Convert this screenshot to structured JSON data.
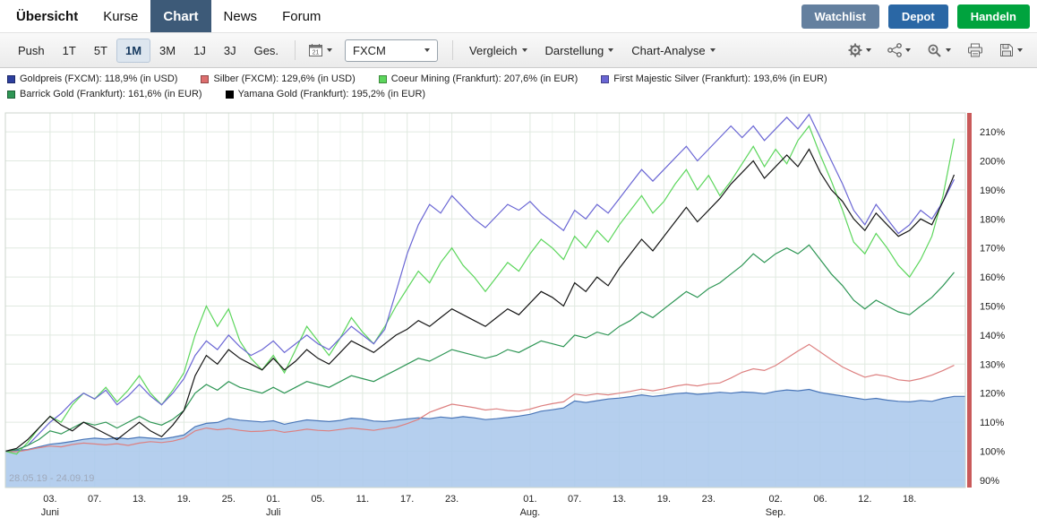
{
  "nav": {
    "items": [
      {
        "label": "Übersicht"
      },
      {
        "label": "Kurse"
      },
      {
        "label": "Chart",
        "active": true
      },
      {
        "label": "News"
      },
      {
        "label": "Forum"
      }
    ],
    "buttons": [
      {
        "label": "Watchlist",
        "color": "#64809f"
      },
      {
        "label": "Depot",
        "color": "#2a67a5"
      },
      {
        "label": "Handeln",
        "color": "#00a33e"
      }
    ]
  },
  "toolbar": {
    "push_label": "Push",
    "periods": [
      {
        "label": "1T"
      },
      {
        "label": "5T"
      },
      {
        "label": "1M",
        "active": true
      },
      {
        "label": "3M"
      },
      {
        "label": "1J"
      },
      {
        "label": "3J"
      },
      {
        "label": "Ges."
      }
    ],
    "calendar_day": "21",
    "source_select": {
      "value": "FXCM"
    },
    "menus": [
      {
        "label": "Vergleich"
      },
      {
        "label": "Darstellung"
      },
      {
        "label": "Chart-Analyse"
      }
    ],
    "icons": [
      {
        "name": "calendar-icon"
      },
      {
        "name": "settings-gear-icon"
      },
      {
        "name": "indicators-nodes-icon"
      },
      {
        "name": "zoom-in-icon"
      },
      {
        "name": "printer-icon"
      },
      {
        "name": "save-icon"
      }
    ]
  },
  "legend": {
    "items": [
      {
        "label": "Goldpreis (FXCM): 118,9% (in USD)",
        "color": "#2d3f9e"
      },
      {
        "label": "Silber (FXCM): 129,6% (in USD)",
        "color": "#dd6e6e"
      },
      {
        "label": "Coeur Mining (Frankfurt): 207,6% (in EUR)",
        "color": "#5cd65c"
      },
      {
        "label": "First Majestic Silver (Frankfurt): 193,6% (in EUR)",
        "color": "#6a66d4"
      },
      {
        "label": "Barrick Gold (Frankfurt): 161,6% (in EUR)",
        "color": "#2e9655"
      },
      {
        "label": "Yamana Gold (Frankfurt): 195,2% (in EUR)",
        "color": "#000000"
      }
    ]
  },
  "chart_data": {
    "type": "line",
    "title": "",
    "xlabel": "",
    "ylabel": "",
    "range_label": "28.05.19 - 24.09.19",
    "grid": true,
    "legend_position": "top",
    "ylim": [
      87.5,
      216.5
    ],
    "y_ticks": [
      90,
      100,
      110,
      120,
      130,
      140,
      150,
      160,
      170,
      180,
      190,
      200,
      210
    ],
    "y_tick_suffix": "%",
    "x_ticks": [
      {
        "index": 4,
        "label": "03."
      },
      {
        "index": 8,
        "label": "07."
      },
      {
        "index": 12,
        "label": "13."
      },
      {
        "index": 16,
        "label": "19."
      },
      {
        "index": 20,
        "label": "25."
      },
      {
        "index": 24,
        "label": "01."
      },
      {
        "index": 28,
        "label": "05."
      },
      {
        "index": 32,
        "label": "11."
      },
      {
        "index": 36,
        "label": "17."
      },
      {
        "index": 40,
        "label": "23."
      },
      {
        "index": 47,
        "label": "01."
      },
      {
        "index": 51,
        "label": "07."
      },
      {
        "index": 55,
        "label": "13."
      },
      {
        "index": 59,
        "label": "19."
      },
      {
        "index": 63,
        "label": "23."
      },
      {
        "index": 69,
        "label": "02."
      },
      {
        "index": 73,
        "label": "06."
      },
      {
        "index": 77,
        "label": "12."
      },
      {
        "index": 81,
        "label": "18."
      }
    ],
    "month_labels": [
      {
        "index": 4,
        "label": "Juni"
      },
      {
        "index": 24,
        "label": "Juli"
      },
      {
        "index": 47,
        "label": "Aug."
      },
      {
        "index": 69,
        "label": "Sep."
      }
    ],
    "series": [
      {
        "name": "Goldpreis (FXCM)",
        "unit": "USD",
        "final_pct": "118,9%",
        "type": "area",
        "color": "#4a76b8",
        "fill": "#abc8ec",
        "values": [
          100,
          100.3,
          100.6,
          101.5,
          102.4,
          102.8,
          103.4,
          104.1,
          104.5,
          104.2,
          104.6,
          104.3,
          104.8,
          104.5,
          104.2,
          104.8,
          105.6,
          108.5,
          109.6,
          109.9,
          111.3,
          110.7,
          110.4,
          110.1,
          110.5,
          109.3,
          110.1,
          110.8,
          110.5,
          110.2,
          110.6,
          111.4,
          111.1,
          110.4,
          110.2,
          110.7,
          111.1,
          111.5,
          111.2,
          111.8,
          111.4,
          111.9,
          111.5,
          110.9,
          111.2,
          111.6,
          112.1,
          112.7,
          113.8,
          114.3,
          114.9,
          117.3,
          116.8,
          117.4,
          118,
          118.3,
          118.8,
          119.4,
          118.9,
          119.3,
          119.8,
          120.1,
          119.6,
          119.9,
          120.3,
          120,
          120.4,
          120.2,
          119.8,
          120.6,
          121.1,
          120.8,
          121.3,
          120.2,
          119.6,
          119,
          118.4,
          117.8,
          118.2,
          117.6,
          117.2,
          117,
          117.5,
          117.2,
          118.2,
          118.9,
          118.9
        ]
      },
      {
        "name": "Silber (FXCM)",
        "unit": "USD",
        "final_pct": "129,6%",
        "type": "line",
        "color": "#dd8080",
        "values": [
          100,
          99.8,
          100.4,
          101.2,
          101.8,
          101.5,
          102.3,
          102.8,
          102.5,
          102.2,
          102.6,
          102,
          102.8,
          103.3,
          103,
          103.5,
          104.5,
          107,
          108,
          107.4,
          107.8,
          107.2,
          106.8,
          106.9,
          107.3,
          106.5,
          107,
          107.6,
          107.2,
          107,
          107.5,
          108,
          107.6,
          107.2,
          107.8,
          108.3,
          109.5,
          111,
          113.4,
          114.8,
          116.2,
          115.6,
          115,
          114.2,
          114.6,
          114,
          113.8,
          114.5,
          115.6,
          116.4,
          117,
          119.7,
          119.2,
          119.8,
          119.4,
          120,
          120.6,
          121.4,
          120.8,
          121.5,
          122.4,
          123,
          122.5,
          123.2,
          123.5,
          125.2,
          127.2,
          128.4,
          127.8,
          129.5,
          132,
          134.5,
          136.8,
          134.2,
          131.5,
          129,
          127.2,
          125.5,
          126.4,
          125.8,
          124.6,
          124.2,
          125,
          126.2,
          127.8,
          129.6
        ]
      },
      {
        "name": "Coeur Mining (Frankfurt)",
        "unit": "EUR",
        "final_pct": "207,6%",
        "type": "line",
        "color": "#5cd65c",
        "values": [
          100,
          99,
          103,
          108,
          112,
          110,
          116,
          120,
          118,
          122,
          117,
          121,
          126,
          120,
          116,
          121,
          127,
          140,
          150,
          143,
          149,
          138,
          132,
          128,
          133,
          127,
          135,
          143,
          138,
          133,
          139,
          146,
          141,
          137,
          143,
          150,
          156,
          162,
          158,
          165,
          170,
          164,
          160,
          155,
          160,
          165,
          162,
          168,
          173,
          170,
          166,
          174,
          170,
          176,
          172,
          178,
          183,
          188,
          182,
          186,
          192,
          197,
          190,
          195,
          188,
          193,
          199,
          205,
          198,
          204,
          199,
          207,
          212,
          202,
          193,
          183,
          172,
          168,
          175,
          170,
          164,
          160,
          166,
          174,
          188,
          207.6
        ]
      },
      {
        "name": "First Majestic Silver (Frankfurt)",
        "unit": "EUR",
        "final_pct": "193,6%",
        "type": "line",
        "color": "#6a66d4",
        "values": [
          100,
          100.5,
          102,
          106,
          110,
          113,
          117,
          120,
          118,
          121,
          116,
          119,
          123,
          119,
          116,
          120,
          125,
          133,
          138,
          135,
          140,
          136,
          133,
          135,
          138,
          134,
          137,
          140,
          137,
          135,
          139,
          143,
          140,
          137,
          142,
          155,
          168,
          178,
          185,
          182,
          188,
          184,
          180,
          177,
          181,
          185,
          183,
          186,
          182,
          179,
          176,
          183,
          180,
          185,
          182,
          187,
          192,
          197,
          193,
          197,
          201,
          205,
          200,
          204,
          208,
          212,
          208,
          212,
          207,
          211,
          215,
          211,
          216,
          208,
          200,
          192,
          183,
          178,
          185,
          180,
          175,
          178,
          183,
          180,
          186,
          193.6
        ]
      },
      {
        "name": "Barrick Gold (Frankfurt)",
        "unit": "EUR",
        "final_pct": "161,6%",
        "type": "line",
        "color": "#2e9655",
        "values": [
          100,
          100.5,
          102,
          104,
          107,
          106,
          108,
          110,
          109,
          110,
          108,
          110,
          112,
          110,
          109,
          111,
          114,
          120,
          123,
          121,
          124,
          122,
          121,
          120,
          122,
          120,
          122,
          124,
          123,
          122,
          124,
          126,
          125,
          124,
          126,
          128,
          130,
          132,
          131,
          133,
          135,
          134,
          133,
          132,
          133,
          135,
          134,
          136,
          138,
          137,
          136,
          140,
          139,
          141,
          140,
          143,
          145,
          148,
          146,
          149,
          152,
          155,
          153,
          156,
          158,
          161,
          164,
          168,
          165,
          168,
          170,
          168,
          171,
          166,
          161,
          157,
          152,
          149,
          152,
          150,
          148,
          147,
          150,
          153,
          157,
          161.6
        ]
      },
      {
        "name": "Yamana Gold (Frankfurt)",
        "unit": "EUR",
        "final_pct": "195,2%",
        "type": "line",
        "color": "#151515",
        "values": [
          100,
          101,
          104,
          108,
          112,
          109,
          107,
          110,
          108,
          106,
          104,
          107,
          110,
          107,
          105,
          109,
          114,
          126,
          133,
          130,
          135,
          132,
          130,
          128,
          132,
          128,
          131,
          135,
          132,
          130,
          134,
          138,
          136,
          134,
          137,
          140,
          142,
          145,
          143,
          146,
          149,
          147,
          145,
          143,
          146,
          149,
          147,
          151,
          155,
          153,
          150,
          158,
          155,
          160,
          157,
          163,
          168,
          173,
          169,
          174,
          179,
          184,
          179,
          183,
          187,
          192,
          196,
          200,
          194,
          198,
          202,
          198,
          204,
          196,
          190,
          186,
          180,
          176,
          182,
          178,
          174,
          176,
          180,
          178,
          186,
          195.2
        ]
      }
    ]
  }
}
